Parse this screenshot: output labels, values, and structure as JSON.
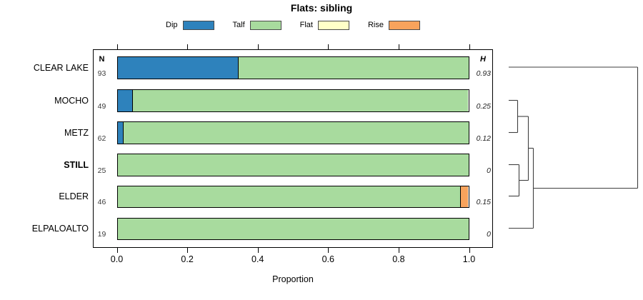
{
  "chart_data": {
    "type": "bar",
    "subtype": "horizontal_stacked_with_dendrogram",
    "title": "Flats: sibling",
    "xlabel": "Proportion",
    "xlim": [
      0,
      1
    ],
    "x_ticks": [
      "0.0",
      "0.2",
      "0.4",
      "0.6",
      "0.8",
      "1.0"
    ],
    "x_tick_values": [
      0,
      0.2,
      0.4,
      0.6,
      0.8,
      1.0
    ],
    "columns": {
      "n_header": "N",
      "h_header": "H"
    },
    "legend": [
      {
        "label": "Dip",
        "color": "#2E82BC"
      },
      {
        "label": "Talf",
        "color": "#A8DB9E"
      },
      {
        "label": "Flat",
        "color": "#FFFFC8"
      },
      {
        "label": "Rise",
        "color": "#F8A35C"
      }
    ],
    "rows": [
      {
        "label": "CLEAR LAKE",
        "bold": false,
        "n": "93",
        "h": "0.93",
        "segments": [
          {
            "category": "Dip",
            "value": 0.344
          },
          {
            "category": "Talf",
            "value": 0.656
          }
        ]
      },
      {
        "label": "MOCHO",
        "bold": false,
        "n": "49",
        "h": "0.25",
        "segments": [
          {
            "category": "Dip",
            "value": 0.041
          },
          {
            "category": "Talf",
            "value": 0.959
          }
        ]
      },
      {
        "label": "METZ",
        "bold": false,
        "n": "62",
        "h": "0.12",
        "segments": [
          {
            "category": "Dip",
            "value": 0.016
          },
          {
            "category": "Talf",
            "value": 0.984
          }
        ]
      },
      {
        "label": "STILL",
        "bold": true,
        "n": "25",
        "h": "0",
        "segments": [
          {
            "category": "Talf",
            "value": 1.0
          }
        ]
      },
      {
        "label": "ELDER",
        "bold": false,
        "n": "46",
        "h": "0.15",
        "segments": [
          {
            "category": "Talf",
            "value": 0.978
          },
          {
            "category": "Rise",
            "value": 0.022
          }
        ]
      },
      {
        "label": "ELPALOALTO",
        "bold": false,
        "n": "19",
        "h": "0",
        "segments": [
          {
            "category": "Talf",
            "value": 1.0
          }
        ]
      }
    ],
    "dendrogram": {
      "structure": "(((MOCHO,METZ),(STILL,ELDER)),ELPALOALTO) then CLEAR LAKE joins at maximum height",
      "line_color": "#3f3f3f",
      "segments": [
        [
          712,
          94,
          892.5,
          94
        ],
        [
          892.5,
          94,
          892.5,
          263.5
        ],
        [
          746.5,
          263.5,
          892.5,
          263.5
        ],
        [
          712,
          140.5,
          724.5,
          140.5
        ],
        [
          712,
          185.5,
          724.5,
          185.5
        ],
        [
          724.5,
          140.5,
          724.5,
          185.5
        ],
        [
          724.5,
          163,
          739.5,
          163
        ],
        [
          712,
          230.5,
          726.5,
          230.5
        ],
        [
          712,
          274.5,
          726.5,
          274.5
        ],
        [
          726.5,
          230.5,
          726.5,
          274.5
        ],
        [
          726.5,
          252.5,
          739.5,
          252.5
        ],
        [
          739.5,
          163,
          739.5,
          252.5
        ],
        [
          739.5,
          207.5,
          746.5,
          207.5
        ],
        [
          712,
          319.5,
          746.5,
          319.5
        ],
        [
          746.5,
          207.5,
          746.5,
          319.5
        ]
      ]
    }
  }
}
